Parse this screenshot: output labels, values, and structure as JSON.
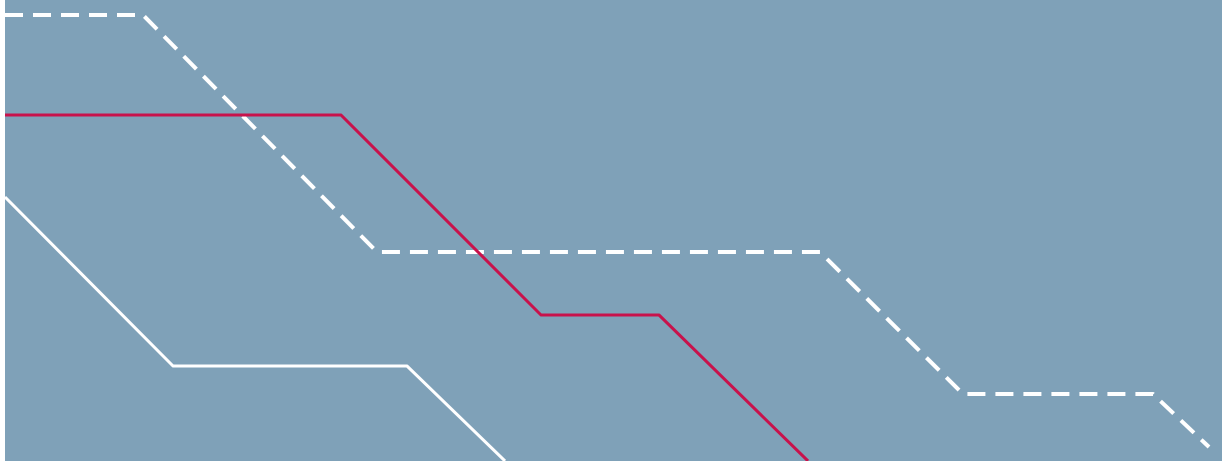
{
  "colors": {
    "background": "#7fa1b8",
    "page_margin": "#ffffff",
    "red_line": "#c8124b",
    "white_line": "#ffffff",
    "dashed_line": "#ffffff"
  },
  "lines": [
    {
      "name": "dashed-white-line",
      "style": "dashed"
    },
    {
      "name": "solid-red-line",
      "style": "solid"
    },
    {
      "name": "solid-white-line",
      "style": "solid"
    }
  ]
}
